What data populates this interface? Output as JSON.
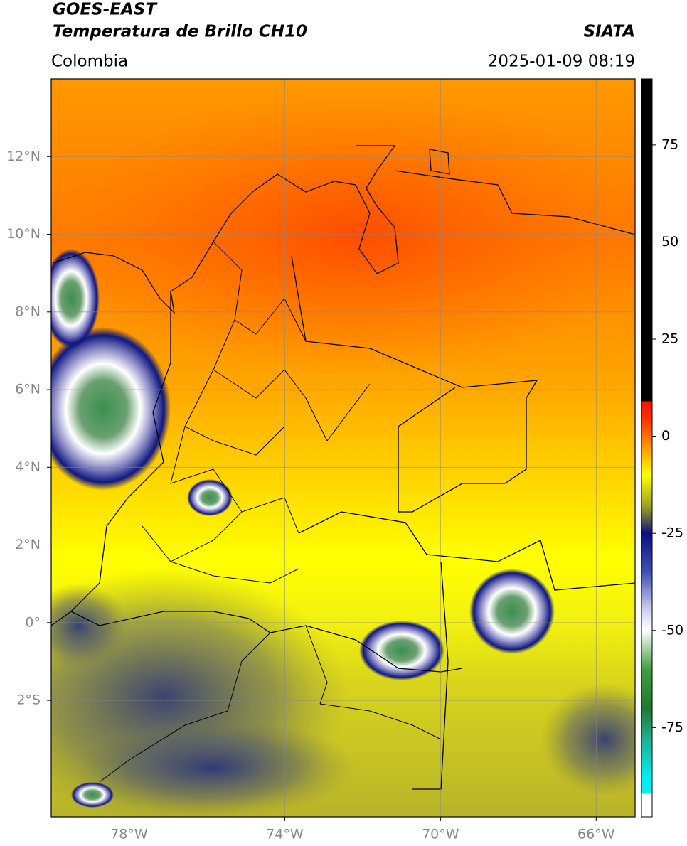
{
  "header": {
    "title_line1": "GOES-EAST",
    "title_line2": "Temperatura de Brillo CH10",
    "source": "SIATA",
    "region": "Colombia",
    "datetime": "2025-01-09 08:19"
  },
  "map": {
    "lon_range": [
      -80,
      -65
    ],
    "lat_range": [
      -5,
      14
    ],
    "lon_ticks": [
      {
        "value": -78,
        "label": "78°W"
      },
      {
        "value": -74,
        "label": "74°W"
      },
      {
        "value": -70,
        "label": "70°W"
      },
      {
        "value": -66,
        "label": "66°W"
      }
    ],
    "lat_ticks": [
      {
        "value": 12,
        "label": "12°N"
      },
      {
        "value": 10,
        "label": "10°N"
      },
      {
        "value": 8,
        "label": "8°N"
      },
      {
        "value": 6,
        "label": "6°N"
      },
      {
        "value": 4,
        "label": "4°N"
      },
      {
        "value": 2,
        "label": "2°N"
      },
      {
        "value": 0,
        "label": "0°"
      },
      {
        "value": -2,
        "label": "2°S"
      }
    ]
  },
  "colorbar": {
    "range": [
      -98,
      92
    ],
    "ticks": [
      75,
      50,
      25,
      0,
      -25,
      -50,
      -75
    ]
  }
}
